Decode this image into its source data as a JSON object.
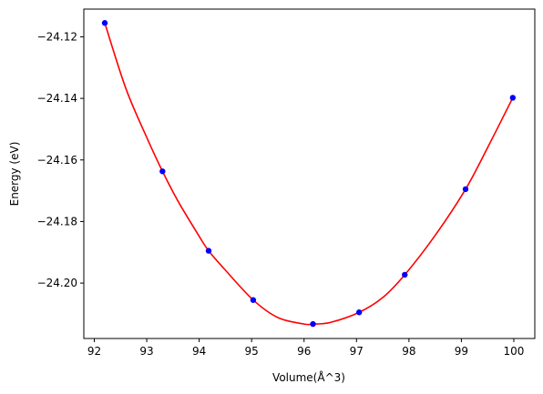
{
  "chart_data": {
    "type": "scatter",
    "title": "",
    "xlabel": "Volume(Å^3)",
    "ylabel": "Energy (eV)",
    "xlim": [
      91.8,
      100.4
    ],
    "ylim": [
      -24.218,
      -24.111
    ],
    "xticks": [
      92,
      93,
      94,
      95,
      96,
      97,
      98,
      99,
      100
    ],
    "xtick_labels": [
      "92",
      "93",
      "94",
      "95",
      "96",
      "97",
      "98",
      "99",
      "100"
    ],
    "yticks": [
      -24.12,
      -24.14,
      -24.16,
      -24.18,
      -24.2
    ],
    "ytick_labels": [
      "−24.12",
      "−24.14",
      "−24.16",
      "−24.18",
      "−24.20"
    ],
    "grid": false,
    "series": [
      {
        "kind": "points",
        "color": "#0000ff",
        "x": [
          92.2,
          93.3,
          94.18,
          95.03,
          96.17,
          97.05,
          97.92,
          99.08,
          99.98
        ],
        "y": [
          -24.1155,
          -24.1637,
          -24.1895,
          -24.2055,
          -24.2133,
          -24.2095,
          -24.1973,
          -24.1695,
          -24.1398
        ]
      },
      {
        "kind": "fit-curve",
        "color": "#ff0000",
        "x": [
          92.2,
          92.6,
          93.0,
          93.3,
          93.6,
          94.0,
          94.18,
          94.5,
          95.03,
          95.5,
          96.0,
          96.17,
          96.5,
          97.05,
          97.5,
          97.92,
          98.5,
          99.08,
          99.5,
          99.98
        ],
        "y": [
          -24.1155,
          -24.1367,
          -24.1527,
          -24.1637,
          -24.1735,
          -24.1848,
          -24.1895,
          -24.1958,
          -24.2055,
          -24.2112,
          -24.2133,
          -24.2133,
          -24.2128,
          -24.2095,
          -24.2047,
          -24.1973,
          -24.1845,
          -24.1695,
          -24.156,
          -24.1398
        ]
      }
    ]
  }
}
